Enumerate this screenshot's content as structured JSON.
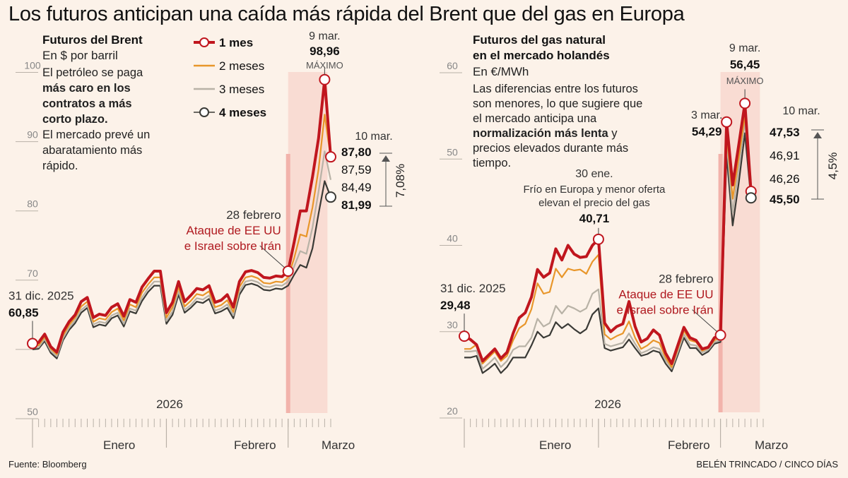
{
  "title": "Los futuros anticipan una caída más rápida del Brent que del gas en Europa",
  "source": "Fuente: Bloomberg",
  "credit": "BELÉN TRINCADO / CINCO DÍAS",
  "colors": {
    "background": "#fcf2e9",
    "m1": "#c0161e",
    "m2": "#e8962a",
    "m3": "#b8b2a6",
    "m4": "#3a3a36",
    "war_band": "#f9dcd3",
    "war_line": "#f2b3ab",
    "annotation_red": "#b01a20"
  },
  "legend": [
    {
      "key": "m1",
      "label": "1 mes",
      "marker": "circle"
    },
    {
      "key": "m2",
      "label": "2 meses",
      "marker": "none"
    },
    {
      "key": "m3",
      "label": "3 meses",
      "marker": "none"
    },
    {
      "key": "m4",
      "label": "4 meses",
      "marker": "circle"
    }
  ],
  "chart_data": [
    {
      "type": "line",
      "id": "brent",
      "title": "Futuros del Brent",
      "subtitle": "En $ por barril",
      "description": [
        {
          "text": "El petróleo se paga",
          "bold": false
        },
        {
          "text": "más caro en los",
          "bold": true
        },
        {
          "text": "contratos a más",
          "bold": true
        },
        {
          "text": "corto plazo.",
          "bold": true
        },
        {
          "text": "El mercado prevé un",
          "bold": false
        },
        {
          "text": "abaratamiento más",
          "bold": false
        },
        {
          "text": "rápido.",
          "bold": false
        }
      ],
      "ylim": [
        50,
        100
      ],
      "yticks": [
        50,
        60,
        70,
        80,
        90,
        100
      ],
      "year_label": "2026",
      "months": [
        "Enero",
        "Febrero",
        "Marzo"
      ],
      "x_count": 50,
      "war_start_index": 42,
      "series": [
        {
          "name": "1 mes",
          "key": "m1",
          "values": [
            60.85,
            61.0,
            62.2,
            60.4,
            59.6,
            62.5,
            64.0,
            65.0,
            66.9,
            67.5,
            64.6,
            65.1,
            64.9,
            66.1,
            66.6,
            64.8,
            67.2,
            66.8,
            69.0,
            70.2,
            71.3,
            71.3,
            65.3,
            66.8,
            69.8,
            66.9,
            67.8,
            68.8,
            68.6,
            69.2,
            66.8,
            67.1,
            67.9,
            66.1,
            69.8,
            71.2,
            71.4,
            71.1,
            70.4,
            70.3,
            70.6,
            70.5,
            71.3,
            75.5,
            80.0,
            80.0,
            84.9,
            90.5,
            98.96,
            87.8
          ]
        },
        {
          "name": "2 meses",
          "key": "m2",
          "values": [
            60.5,
            60.6,
            61.8,
            60.1,
            59.3,
            62.0,
            63.5,
            64.6,
            66.2,
            66.9,
            64.0,
            64.5,
            64.3,
            65.4,
            65.9,
            64.2,
            66.5,
            66.1,
            68.2,
            69.4,
            70.4,
            70.4,
            64.6,
            66.1,
            69.0,
            66.2,
            67.0,
            68.0,
            67.8,
            68.4,
            66.1,
            66.4,
            67.1,
            65.4,
            69.0,
            70.4,
            70.6,
            70.3,
            69.6,
            69.5,
            69.8,
            69.7,
            70.4,
            73.2,
            76.6,
            76.3,
            80.5,
            86.0,
            93.9,
            87.59
          ]
        },
        {
          "name": "3 meses",
          "key": "m3",
          "values": [
            60.2,
            60.3,
            61.5,
            59.8,
            59.0,
            61.6,
            63.1,
            64.2,
            65.7,
            66.4,
            63.6,
            64.0,
            63.8,
            64.9,
            65.3,
            63.7,
            65.9,
            65.6,
            67.5,
            68.8,
            69.8,
            69.8,
            64.1,
            65.5,
            68.4,
            65.7,
            66.4,
            67.4,
            67.2,
            67.8,
            65.6,
            65.9,
            66.5,
            64.9,
            68.4,
            69.8,
            70.0,
            69.7,
            69.1,
            69.0,
            69.3,
            69.2,
            69.8,
            72.0,
            74.2,
            73.8,
            77.6,
            82.8,
            88.6,
            84.49
          ]
        },
        {
          "name": "4 meses",
          "key": "m4",
          "values": [
            60.0,
            60.1,
            61.2,
            59.5,
            58.7,
            61.3,
            62.8,
            63.8,
            65.3,
            66.0,
            63.2,
            63.6,
            63.4,
            64.5,
            64.9,
            63.3,
            65.5,
            65.2,
            67.0,
            68.3,
            69.2,
            69.2,
            63.7,
            65.0,
            67.9,
            65.3,
            66.0,
            66.9,
            66.7,
            67.3,
            65.2,
            65.5,
            66.0,
            64.5,
            67.9,
            69.3,
            69.5,
            69.2,
            68.6,
            68.5,
            68.8,
            68.7,
            69.2,
            70.8,
            72.2,
            71.8,
            74.6,
            79.6,
            84.3,
            81.99
          ]
        }
      ],
      "annotations": {
        "start": {
          "date": "31 dic. 2025",
          "value": "60,85"
        },
        "event": {
          "date": "28 febrero",
          "text_line1": "Ataque de EE UU",
          "text_line2": "e Israel sobre Irán"
        },
        "max": {
          "date": "9 mar.",
          "value": "98,96",
          "label": "MÁXIMO"
        },
        "end": {
          "date": "10 mar.",
          "values": [
            "87,80",
            "87,59",
            "84,49",
            "81,99"
          ],
          "spread": "7,08%"
        }
      }
    },
    {
      "type": "line",
      "id": "gas",
      "title": "Futuros del gas natural",
      "title2": "en el mercado holandés",
      "subtitle": "En €/MWh",
      "description": [
        [
          {
            "text": "Las diferencias entre los futuros",
            "bold": false
          }
        ],
        [
          {
            "text": "son menores, lo que sugiere que",
            "bold": false
          }
        ],
        [
          {
            "text": "el mercado anticipa una",
            "bold": false
          }
        ],
        [
          {
            "text": "normalización más lenta",
            "bold": true
          },
          {
            "text": " y",
            "bold": false
          }
        ],
        [
          {
            "text": "precios elevados durante más",
            "bold": false
          }
        ],
        [
          {
            "text": "tiempo.",
            "bold": false
          }
        ]
      ],
      "ylim": [
        20,
        60
      ],
      "yticks": [
        20,
        30,
        40,
        50,
        60
      ],
      "year_label": "2026",
      "months": [
        "Enero",
        "Febrero",
        "Marzo"
      ],
      "x_count": 50,
      "war_start_index": 42,
      "series": [
        {
          "name": "1 mes",
          "key": "m1",
          "values": [
            29.48,
            29.1,
            28.5,
            26.6,
            27.3,
            28.0,
            26.9,
            27.6,
            29.8,
            31.6,
            32.2,
            34.0,
            37.2,
            36.3,
            36.8,
            39.6,
            38.3,
            40.0,
            39.0,
            38.6,
            38.7,
            40.0,
            40.71,
            31.0,
            30.0,
            30.6,
            30.9,
            33.5,
            30.6,
            28.8,
            29.2,
            30.2,
            29.6,
            27.5,
            26.3,
            28.4,
            30.5,
            29.3,
            29.0,
            28.0,
            28.2,
            29.3,
            29.6,
            54.29,
            47.0,
            51.7,
            56.45,
            46.26,
            46.26,
            46.26
          ]
        },
        {
          "name": "2 meses",
          "key": "m2",
          "values": [
            28.0,
            28.0,
            28.5,
            26.3,
            27.0,
            27.7,
            26.6,
            27.2,
            29.0,
            30.4,
            30.9,
            32.6,
            35.6,
            34.4,
            34.6,
            37.3,
            36.3,
            37.3,
            37.1,
            37.2,
            36.7,
            38.1,
            38.9,
            29.7,
            29.1,
            29.5,
            29.8,
            31.2,
            29.3,
            28.0,
            28.4,
            29.0,
            28.7,
            27.0,
            25.9,
            28.0,
            30.1,
            29.0,
            28.8,
            27.8,
            28.1,
            29.0,
            29.3,
            53.0,
            45.4,
            50.2,
            55.0,
            46.91,
            46.91,
            46.91
          ]
        },
        {
          "name": "3 meses",
          "key": "m3",
          "values": [
            27.7,
            27.7,
            27.8,
            25.7,
            26.3,
            27.0,
            25.9,
            26.6,
            27.9,
            28.3,
            28.3,
            29.3,
            31.5,
            30.6,
            31.0,
            33.0,
            32.1,
            33.0,
            32.7,
            32.3,
            32.7,
            34.4,
            34.9,
            28.6,
            28.3,
            28.5,
            28.7,
            29.8,
            28.6,
            27.5,
            27.8,
            28.2,
            28.0,
            26.7,
            25.7,
            27.6,
            29.7,
            28.5,
            28.4,
            27.6,
            27.9,
            28.8,
            29.0,
            52.0,
            43.8,
            49.0,
            54.3,
            47.53,
            47.53,
            47.53
          ]
        },
        {
          "name": "4 meses",
          "key": "m4",
          "values": [
            27.0,
            27.0,
            27.2,
            25.2,
            25.7,
            26.3,
            25.2,
            25.9,
            27.0,
            27.0,
            27.0,
            28.4,
            30.0,
            29.3,
            29.6,
            31.1,
            30.4,
            30.9,
            30.3,
            29.8,
            30.3,
            32.0,
            32.7,
            28.1,
            27.8,
            28.0,
            28.2,
            29.1,
            28.1,
            27.2,
            27.4,
            27.8,
            27.6,
            26.3,
            25.4,
            27.3,
            29.3,
            28.1,
            28.1,
            27.3,
            27.7,
            28.6,
            28.8,
            50.5,
            42.3,
            47.3,
            53.0,
            45.5,
            45.5,
            45.5
          ]
        }
      ],
      "annotations": {
        "start": {
          "date": "31 dic. 2025",
          "value": "29,48"
        },
        "jan30": {
          "date": "30 ene.",
          "text_line1": "Frío en Europa y menor oferta",
          "text_line2": "elevan el precio del gas",
          "value": "40,71"
        },
        "event": {
          "date": "28 febrero",
          "text_line1": "Ataque de EE UU",
          "text_line2": "e Israel sobre Irán"
        },
        "mar3": {
          "date": "3 mar.",
          "value": "54,29"
        },
        "max": {
          "date": "9 mar.",
          "value": "56,45",
          "label": "MÁXIMO"
        },
        "end": {
          "date": "10 mar.",
          "values": [
            "47,53",
            "46,91",
            "46,26",
            "45,50"
          ],
          "spread": "4,5%"
        }
      }
    }
  ]
}
